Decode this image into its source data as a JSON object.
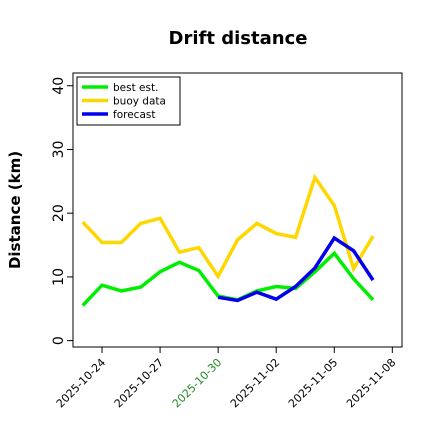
{
  "chart_data": {
    "type": "line",
    "title": "Drift distance",
    "xlabel": "",
    "ylabel": "Distance (km)",
    "ylim": [
      -1,
      42
    ],
    "xlim": [
      "2025-10-22 12:00",
      "2025-11-08 12:00"
    ],
    "yticks": [
      0,
      10,
      20,
      30,
      40
    ],
    "xticks": [
      "2025-10-24",
      "2025-10-27",
      "2025-10-30",
      "2025-11-02",
      "2025-11-05",
      "2025-11-08"
    ],
    "highlight_tick": "2025-10-30",
    "highlight_color": "#228B22",
    "grid": false,
    "legend_position": "top-left",
    "series": [
      {
        "name": "best est.",
        "color": "#00ee00",
        "x": [
          "2025-10-23",
          "2025-10-24",
          "2025-10-25",
          "2025-10-26",
          "2025-10-27",
          "2025-10-28",
          "2025-10-29",
          "2025-10-30",
          "2025-10-31",
          "2025-11-01",
          "2025-11-02",
          "2025-11-03",
          "2025-11-04",
          "2025-11-05",
          "2025-11-06",
          "2025-11-07"
        ],
        "values": [
          5.5,
          8.7,
          7.8,
          8.4,
          10.8,
          12.3,
          11.0,
          7.0,
          6.4,
          7.8,
          8.5,
          8.2,
          10.8,
          13.7,
          9.7,
          6.4
        ]
      },
      {
        "name": "buoy data",
        "color": "#ffd700",
        "x": [
          "2025-10-23",
          "2025-10-24",
          "2025-10-25",
          "2025-10-26",
          "2025-10-27",
          "2025-10-28",
          "2025-10-29",
          "2025-10-30",
          "2025-10-31",
          "2025-11-01",
          "2025-11-02",
          "2025-11-03",
          "2025-11-04",
          "2025-11-05",
          "2025-11-06",
          "2025-11-07"
        ],
        "values": [
          18.6,
          15.4,
          15.4,
          18.4,
          19.2,
          13.9,
          14.6,
          10.1,
          15.8,
          18.4,
          16.8,
          16.2,
          25.6,
          21.2,
          11.3,
          16.4
        ]
      },
      {
        "name": "forecast",
        "color": "#0000ee",
        "x": [
          "2025-10-30",
          "2025-10-31",
          "2025-11-01",
          "2025-11-02",
          "2025-11-03",
          "2025-11-04",
          "2025-11-05",
          "2025-11-06",
          "2025-11-07"
        ],
        "values": [
          6.8,
          6.3,
          7.6,
          6.5,
          8.5,
          11.4,
          16.1,
          14.1,
          9.5
        ]
      }
    ]
  }
}
